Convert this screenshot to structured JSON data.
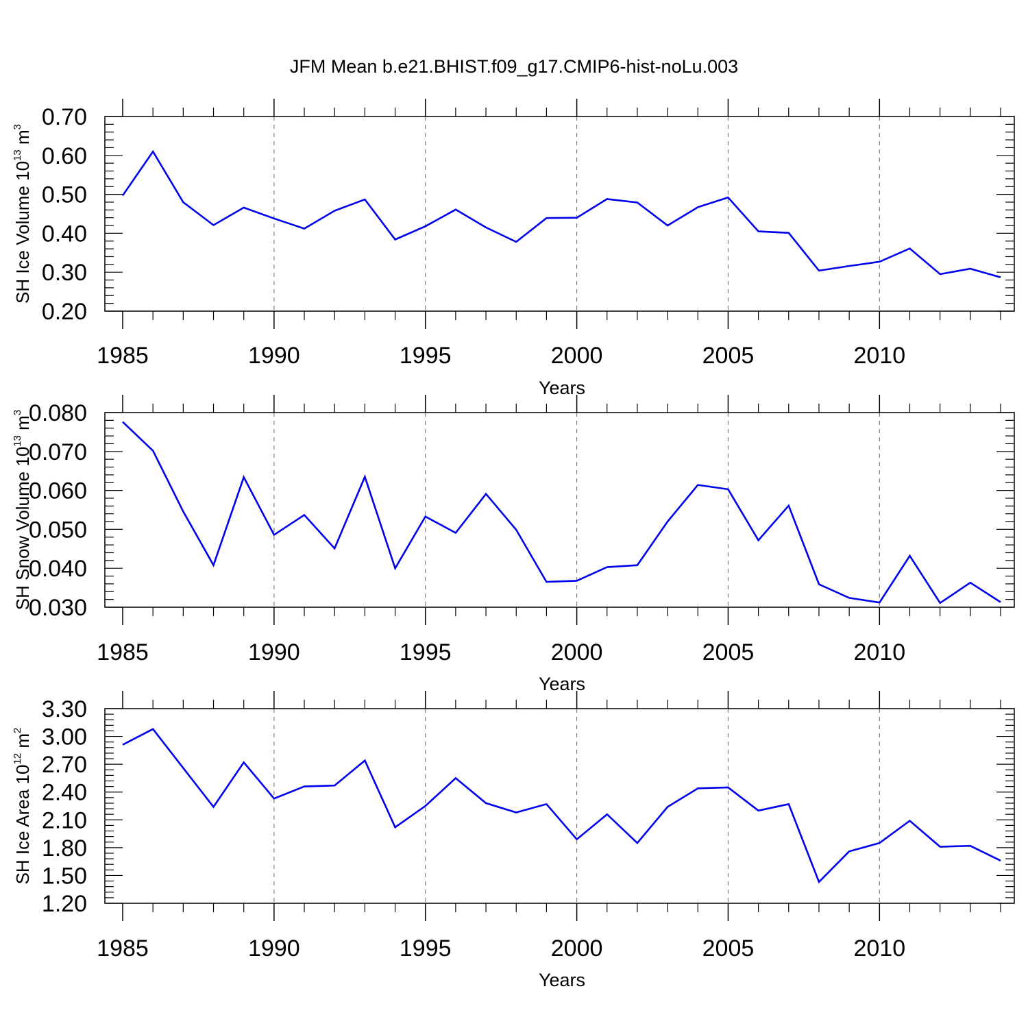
{
  "chart_data": [
    {
      "type": "line",
      "title": "JFM Mean b.e21.BHIST.f09_g17.CMIP6-hist-noLu.003",
      "xlabel": "Years",
      "ylabel": {
        "prefix": "SH Ice Volume 10",
        "exp": "13",
        "unit": " m",
        "unit_exp": "3"
      },
      "xlim": [
        1985,
        2014
      ],
      "ylim": [
        0.2,
        0.7
      ],
      "xticks": [
        1985,
        1990,
        1995,
        2000,
        2005,
        2010
      ],
      "xtick_labels": [
        "1985",
        "1990",
        "1995",
        "2000",
        "2005",
        "2010"
      ],
      "yticks": [
        0.2,
        0.3,
        0.4,
        0.5,
        0.6,
        0.7
      ],
      "ytick_labels": [
        "0.20",
        "0.30",
        "0.40",
        "0.50",
        "0.60",
        "0.70"
      ],
      "ymin_minor": 0.02,
      "x": [
        1985,
        1986,
        1987,
        1988,
        1989,
        1990,
        1991,
        1992,
        1993,
        1994,
        1995,
        1996,
        1997,
        1998,
        1999,
        2000,
        2001,
        2002,
        2003,
        2004,
        2005,
        2006,
        2007,
        2008,
        2009,
        2010,
        2011,
        2012,
        2013,
        2014
      ],
      "values": [
        0.497,
        0.61,
        0.48,
        0.421,
        0.466,
        0.438,
        0.412,
        0.458,
        0.487,
        0.384,
        0.418,
        0.461,
        0.415,
        0.378,
        0.439,
        0.44,
        0.488,
        0.479,
        0.42,
        0.467,
        0.492,
        0.405,
        0.401,
        0.304,
        0.316,
        0.327,
        0.361,
        0.295,
        0.309,
        0.287
      ],
      "series_color": "#0000ee",
      "grid": "dashed vertical at major x ticks"
    },
    {
      "type": "line",
      "title": "",
      "xlabel": "Years",
      "ylabel": {
        "prefix": "SH Snow Volume 10",
        "exp": "13",
        "unit": " m",
        "unit_exp": "3"
      },
      "xlim": [
        1985,
        2014
      ],
      "ylim": [
        0.03,
        0.08
      ],
      "xticks": [
        1985,
        1990,
        1995,
        2000,
        2005,
        2010
      ],
      "xtick_labels": [
        "1985",
        "1990",
        "1995",
        "2000",
        "2005",
        "2010"
      ],
      "yticks": [
        0.03,
        0.04,
        0.05,
        0.06,
        0.07,
        0.08
      ],
      "ytick_labels": [
        "0.030",
        "0.040",
        "0.050",
        "0.060",
        "0.070",
        "0.080"
      ],
      "ymin_minor": 0.002,
      "x": [
        1985,
        1986,
        1987,
        1988,
        1989,
        1990,
        1991,
        1992,
        1993,
        1994,
        1995,
        1996,
        1997,
        1998,
        1999,
        2000,
        2001,
        2002,
        2003,
        2004,
        2005,
        2006,
        2007,
        2008,
        2009,
        2010,
        2011,
        2012,
        2013,
        2014
      ],
      "values": [
        0.0776,
        0.0702,
        0.0546,
        0.0408,
        0.0634,
        0.0486,
        0.0537,
        0.0451,
        0.0635,
        0.04,
        0.0533,
        0.0491,
        0.0591,
        0.0499,
        0.0365,
        0.0368,
        0.0403,
        0.0408,
        0.052,
        0.0614,
        0.0603,
        0.0472,
        0.0561,
        0.0359,
        0.0324,
        0.0312,
        0.0432,
        0.0311,
        0.0363,
        0.0313
      ],
      "series_color": "#0000ee",
      "grid": "dashed vertical at major x ticks"
    },
    {
      "type": "line",
      "title": "",
      "xlabel": "Years",
      "ylabel": {
        "prefix": "SH Ice Area 10",
        "exp": "12",
        "unit": " m",
        "unit_exp": "2"
      },
      "xlim": [
        1985,
        2014
      ],
      "ylim": [
        1.2,
        3.3
      ],
      "xticks": [
        1985,
        1990,
        1995,
        2000,
        2005,
        2010
      ],
      "xtick_labels": [
        "1985",
        "1990",
        "1995",
        "2000",
        "2005",
        "2010"
      ],
      "yticks": [
        1.2,
        1.5,
        1.8,
        2.1,
        2.4,
        2.7,
        3.0,
        3.3
      ],
      "ytick_labels": [
        "1.20",
        "1.50",
        "1.80",
        "2.10",
        "2.40",
        "2.70",
        "3.00",
        "3.30"
      ],
      "ymin_minor": 0.06,
      "x": [
        1985,
        1986,
        1987,
        1988,
        1989,
        1990,
        1991,
        1992,
        1993,
        1994,
        1995,
        1996,
        1997,
        1998,
        1999,
        2000,
        2001,
        2002,
        2003,
        2004,
        2005,
        2006,
        2007,
        2008,
        2009,
        2010,
        2011,
        2012,
        2013,
        2014
      ],
      "values": [
        2.91,
        3.08,
        2.66,
        2.24,
        2.72,
        2.33,
        2.46,
        2.47,
        2.74,
        2.02,
        2.25,
        2.55,
        2.28,
        2.18,
        2.27,
        1.89,
        2.16,
        1.85,
        2.24,
        2.44,
        2.45,
        2.2,
        2.27,
        1.43,
        1.76,
        1.85,
        2.09,
        1.81,
        1.82,
        1.66
      ],
      "series_color": "#0000ee",
      "grid": "dashed vertical at major x ticks"
    }
  ]
}
